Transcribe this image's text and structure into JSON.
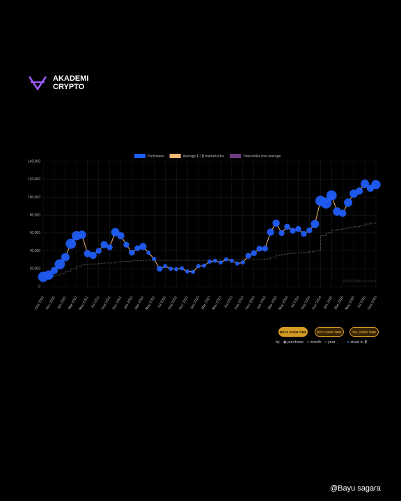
{
  "header": {
    "brand_line1": "AKADEMI",
    "brand_line2": "CRYPTO"
  },
  "chart_data": {
    "type": "bubble-line",
    "categories": [
      "Sep 2020",
      null,
      "Nov 2020",
      null,
      "Jan 2021",
      null,
      "Mar 2021",
      null,
      "May 2021",
      null,
      "Jul 2021",
      null,
      "Sep 2021",
      null,
      "Nov 2021",
      null,
      "Jan 2022",
      null,
      "Mar 2022",
      null,
      "May 2022",
      null,
      "Jul 2022",
      null,
      "Sep 2022",
      null,
      "Nov 2022",
      null,
      "Jan 2023",
      null,
      "Mar 2023",
      null,
      "May 2023",
      null,
      "Jul 2023",
      null,
      "Sep 2023",
      null,
      "Nov 2023",
      null,
      "Jan 2024",
      null,
      "Mar 2024",
      null,
      "May 2024",
      null,
      "Jul 2024",
      null,
      "Sep 2024",
      null,
      "Nov 2024",
      null,
      "Jan 2025",
      null,
      "Mar 2025",
      null,
      "May 2025",
      null,
      "Jul 2025",
      null,
      "Sep 2025"
    ],
    "series": [
      {
        "name": "Purchases",
        "kind": "bubble",
        "color": "#1f5cf5",
        "values": [
          11000,
          13000,
          18000,
          25000,
          33000,
          48000,
          57000,
          58000,
          37000,
          35000,
          40000,
          47000,
          44000,
          61000,
          57000,
          47000,
          38000,
          43000,
          45000,
          38000,
          31000,
          20000,
          23000,
          20000,
          19500,
          20500,
          17000,
          16500,
          23000,
          23500,
          28000,
          29000,
          27000,
          30500,
          29000,
          26000,
          27000,
          34500,
          37500,
          42500,
          42500,
          61000,
          71000,
          60000,
          67000,
          62500,
          64500,
          59000,
          63000,
          70000,
          96000,
          93500,
          102000,
          84000,
          82000,
          94000,
          104000,
          107000,
          115000,
          110000,
          114000
        ],
        "sizes": [
          0.06,
          0.05,
          0.03,
          0.06,
          0.04,
          0.06,
          0.05,
          0.04,
          0.03,
          0.03,
          0.02,
          0.03,
          0.02,
          0.04,
          0.03,
          0.02,
          0.02,
          0.02,
          0.03,
          0.01,
          0.01,
          0.02,
          0.01,
          0.01,
          0.01,
          0.01,
          0.01,
          0.01,
          0.01,
          0.01,
          0.01,
          0.01,
          0.01,
          0.01,
          0.01,
          0.01,
          0.01,
          0.02,
          0.02,
          0.02,
          0.02,
          0.03,
          0.03,
          0.02,
          0.02,
          0.02,
          0.02,
          0.02,
          0.02,
          0.04,
          0.06,
          0.07,
          0.06,
          0.04,
          0.03,
          0.04,
          0.04,
          0.03,
          0.04,
          0.03,
          0.05
        ]
      },
      {
        "name": "Average $ / ₿ market price",
        "kind": "line",
        "color": "#f2b877",
        "values": [
          11000,
          13000,
          18000,
          25000,
          33000,
          48000,
          57000,
          58000,
          37000,
          35000,
          40000,
          47000,
          44000,
          61000,
          57000,
          47000,
          38000,
          43000,
          45000,
          38000,
          31000,
          20000,
          23000,
          20000,
          19500,
          20500,
          17000,
          16500,
          23000,
          23500,
          28000,
          29000,
          27000,
          30500,
          29000,
          26000,
          27000,
          34500,
          37500,
          42500,
          42500,
          61000,
          71000,
          60000,
          67000,
          62500,
          64500,
          59000,
          63000,
          70000,
          96000,
          93500,
          102000,
          84000,
          82000,
          94000,
          104000,
          107000,
          115000,
          110000,
          114000
        ]
      },
      {
        "name": "Total dollar cost average",
        "kind": "step",
        "color": "#6e3b82",
        "values": [
          11000,
          11500,
          13000,
          15000,
          17000,
          20000,
          23000,
          24500,
          25000,
          25500,
          26000,
          26500,
          26500,
          27500,
          28000,
          28500,
          29000,
          29000,
          29500,
          29500,
          29500,
          29500,
          29500,
          29500,
          29500,
          29500,
          29500,
          29500,
          29500,
          29500,
          30000,
          30000,
          30000,
          30000,
          30000,
          30000,
          30000,
          30000,
          30000,
          30000,
          31000,
          33000,
          35000,
          36000,
          37000,
          37500,
          38000,
          38500,
          39000,
          40000,
          57000,
          60000,
          63000,
          64000,
          65000,
          66000,
          67000,
          68000,
          70000,
          71000,
          72000
        ]
      }
    ],
    "ylim": [
      0,
      140000
    ],
    "yticks": [
      0,
      {
        "value": 20000,
        "label": "20,000"
      },
      {
        "value": 40000,
        "label": "40,000"
      },
      {
        "value": 60000,
        "label": "60,000"
      },
      {
        "value": 80000,
        "label": "80,000"
      },
      {
        "value": 100000,
        "label": "100,000"
      },
      {
        "value": 120000,
        "label": "120,000"
      },
      {
        "value": 140000,
        "label": "140,000"
      }
    ],
    "grid": true,
    "legend": "top",
    "watermark": "dcaforbitcoin.com"
  },
  "controls": {
    "buttons": [
      "BUYS OVER TIME",
      "BTC OVER TIME",
      "TVL OVER TIME"
    ],
    "by_label": "by",
    "options": [
      "purchase",
      "month",
      "year"
    ],
    "size_label": "sized in ₿"
  },
  "footer": {
    "handle": "@Bayu sagara"
  }
}
